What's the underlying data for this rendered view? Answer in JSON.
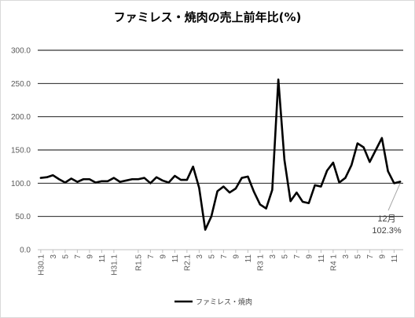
{
  "chart_data": {
    "type": "line",
    "title": "ファミレス・焼肉の売上前年比(%)",
    "xlabel": "",
    "ylabel": "",
    "ylim": [
      0,
      300
    ],
    "yticks": [
      "0.0",
      "50.0",
      "100.0",
      "150.0",
      "200.0",
      "250.0",
      "300.0"
    ],
    "grid": "horizontal",
    "legend_position": "bottom",
    "x_tick_labels": [
      "H30.1",
      "3",
      "5",
      "7",
      "9",
      "11",
      "H31.1",
      "R1.5",
      "7",
      "9",
      "11",
      "R2.1",
      "3",
      "5",
      "7",
      "9",
      "11",
      "R3 1",
      "3",
      "5",
      "7",
      "9",
      "11",
      "R4 1",
      "3",
      "5",
      "7",
      "9",
      "11"
    ],
    "x_tick_positions": [
      0,
      2,
      4,
      6,
      8,
      10,
      12,
      16,
      18,
      20,
      22,
      24,
      26,
      28,
      30,
      32,
      34,
      36,
      38,
      40,
      42,
      44,
      46,
      48,
      50,
      52,
      54,
      56,
      58
    ],
    "series": [
      {
        "name": "ファミレス・焼肉",
        "color": "#000000",
        "values": [
          108,
          109,
          112,
          106,
          101,
          107,
          102,
          106,
          106,
          101,
          103,
          103,
          108,
          102,
          104,
          106,
          106,
          108,
          100,
          109,
          104,
          101,
          111,
          105,
          105,
          125,
          93,
          30,
          50,
          88,
          95,
          86,
          92,
          108,
          110,
          87,
          68,
          62,
          90,
          256,
          135,
          73,
          86,
          72,
          70,
          97,
          95,
          119,
          131,
          101,
          108,
          127,
          160,
          154,
          132,
          150,
          168,
          118,
          100,
          102.3
        ]
      }
    ],
    "annotation": {
      "lines": [
        "12月",
        "102.3%"
      ]
    }
  }
}
